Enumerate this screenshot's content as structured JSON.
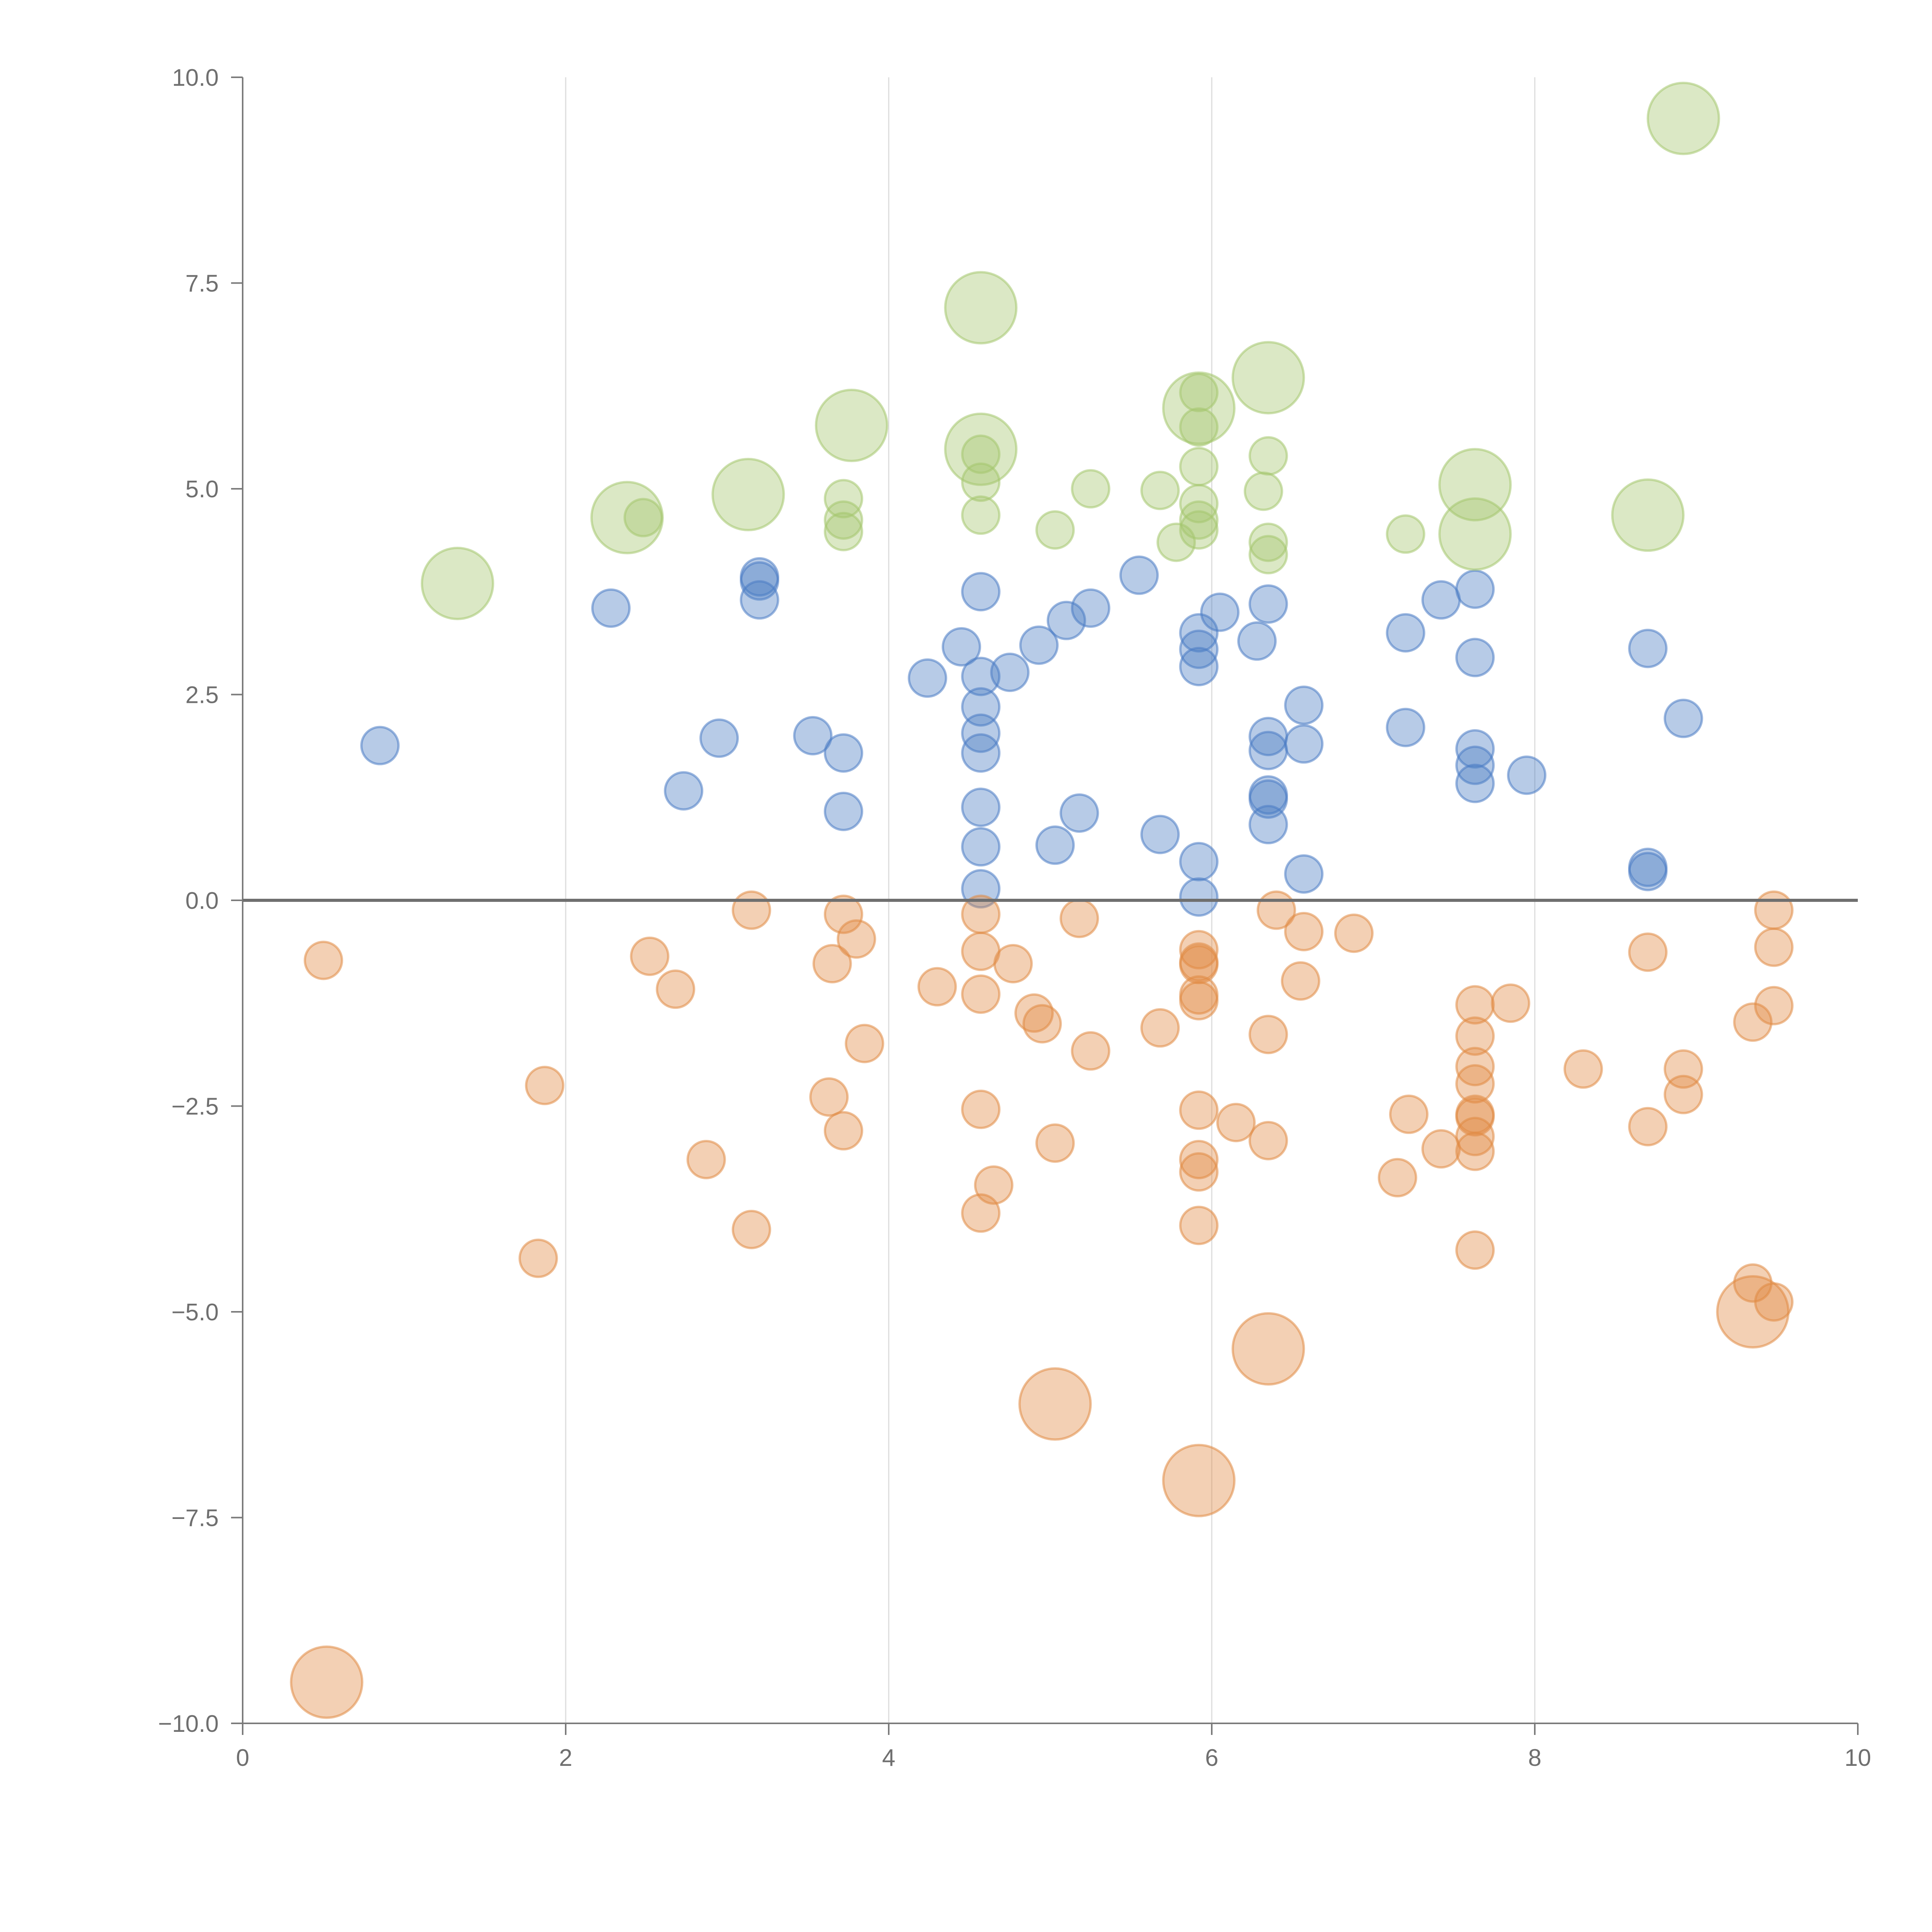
{
  "chart_data": {
    "type": "scatter",
    "title": "",
    "xlabel": "",
    "ylabel": "",
    "xlim": [
      0,
      10
    ],
    "ylim": [
      -10,
      10
    ],
    "x_ticks": [
      0,
      2,
      4,
      6,
      8,
      10
    ],
    "x_tick_labels": [
      "0",
      "2",
      "4",
      "6",
      "8",
      "10"
    ],
    "y_ticks": [
      10,
      7.5,
      5,
      2.5,
      0,
      -2.5,
      -5,
      -7.5,
      -10
    ],
    "y_tick_labels": [
      "10.0",
      "7.5",
      "5.0",
      "2.5",
      "0.0",
      "−2.5",
      "−5.0",
      "−7.5",
      "−10.0"
    ],
    "vertical_grid_at": [
      2,
      4,
      6,
      8
    ],
    "reference_line_y": 0,
    "legend": "none",
    "size_unit_note": "relative marker size: 1 = small, 2 = large",
    "series": [
      {
        "name": "blue",
        "color": "#4a7cc4",
        "points": [
          [
            0.85,
            1.88,
            1
          ],
          [
            2.28,
            3.55,
            1
          ],
          [
            2.73,
            1.33,
            1
          ],
          [
            2.95,
            1.97,
            1
          ],
          [
            3.2,
            3.93,
            1
          ],
          [
            3.2,
            3.88,
            1
          ],
          [
            3.2,
            3.65,
            1
          ],
          [
            3.53,
            2.0,
            1
          ],
          [
            3.72,
            1.79,
            1
          ],
          [
            3.72,
            1.08,
            1
          ],
          [
            4.24,
            2.7,
            1
          ],
          [
            4.45,
            3.08,
            1
          ],
          [
            4.57,
            3.75,
            1
          ],
          [
            4.57,
            2.72,
            1
          ],
          [
            4.57,
            2.35,
            1
          ],
          [
            4.57,
            2.03,
            1
          ],
          [
            4.57,
            1.79,
            1
          ],
          [
            4.57,
            1.13,
            1
          ],
          [
            4.57,
            0.65,
            1
          ],
          [
            4.57,
            0.14,
            1
          ],
          [
            4.75,
            2.77,
            1
          ],
          [
            4.93,
            3.1,
            1
          ],
          [
            5.03,
            0.67,
            1
          ],
          [
            5.1,
            3.4,
            1
          ],
          [
            5.18,
            1.06,
            1
          ],
          [
            5.25,
            3.55,
            1
          ],
          [
            5.55,
            3.95,
            1
          ],
          [
            5.68,
            0.8,
            1
          ],
          [
            5.92,
            3.25,
            1
          ],
          [
            5.92,
            3.05,
            1
          ],
          [
            5.92,
            2.84,
            1
          ],
          [
            5.92,
            0.47,
            1
          ],
          [
            5.92,
            0.04,
            1
          ],
          [
            6.05,
            3.5,
            1
          ],
          [
            6.28,
            3.15,
            1
          ],
          [
            6.35,
            3.6,
            1
          ],
          [
            6.35,
            1.99,
            1
          ],
          [
            6.35,
            1.82,
            1
          ],
          [
            6.35,
            1.28,
            1
          ],
          [
            6.35,
            1.23,
            1
          ],
          [
            6.35,
            0.92,
            1
          ],
          [
            6.57,
            2.37,
            1
          ],
          [
            6.57,
            1.9,
            1
          ],
          [
            6.57,
            0.32,
            1
          ],
          [
            7.2,
            3.25,
            1
          ],
          [
            7.2,
            2.1,
            1
          ],
          [
            7.42,
            3.65,
            1
          ],
          [
            7.63,
            3.78,
            1
          ],
          [
            7.63,
            2.95,
            1
          ],
          [
            7.63,
            1.84,
            1
          ],
          [
            7.63,
            1.64,
            1
          ],
          [
            7.63,
            1.42,
            1
          ],
          [
            7.95,
            1.52,
            1
          ],
          [
            8.7,
            3.06,
            1
          ],
          [
            8.7,
            0.4,
            1
          ],
          [
            8.7,
            0.35,
            1
          ],
          [
            8.92,
            2.21,
            1
          ]
        ]
      },
      {
        "name": "orange",
        "color": "#e08a44",
        "points": [
          [
            0.5,
            -0.73,
            1
          ],
          [
            0.52,
            -9.5,
            2
          ],
          [
            1.83,
            -4.35,
            1
          ],
          [
            1.87,
            -2.25,
            1
          ],
          [
            2.52,
            -0.68,
            1
          ],
          [
            2.68,
            -1.08,
            1
          ],
          [
            2.87,
            -3.15,
            1
          ],
          [
            3.15,
            -0.12,
            1
          ],
          [
            3.15,
            -4.0,
            1
          ],
          [
            3.63,
            -2.39,
            1
          ],
          [
            3.65,
            -0.77,
            1
          ],
          [
            3.72,
            -0.17,
            1
          ],
          [
            3.72,
            -2.8,
            1
          ],
          [
            3.8,
            -0.47,
            1
          ],
          [
            3.85,
            -1.74,
            1
          ],
          [
            4.3,
            -1.05,
            1
          ],
          [
            4.57,
            -0.17,
            1
          ],
          [
            4.57,
            -0.62,
            1
          ],
          [
            4.57,
            -1.14,
            1
          ],
          [
            4.57,
            -2.54,
            1
          ],
          [
            4.57,
            -3.8,
            1
          ],
          [
            4.65,
            -3.46,
            1
          ],
          [
            4.77,
            -0.77,
            1
          ],
          [
            4.9,
            -1.37,
            1
          ],
          [
            4.95,
            -1.5,
            1
          ],
          [
            5.03,
            -2.95,
            1
          ],
          [
            5.03,
            -6.12,
            2
          ],
          [
            5.18,
            -0.22,
            1
          ],
          [
            5.25,
            -1.83,
            1
          ],
          [
            5.68,
            -1.55,
            1
          ],
          [
            5.92,
            -0.6,
            1
          ],
          [
            5.92,
            -0.75,
            1
          ],
          [
            5.92,
            -0.78,
            1
          ],
          [
            5.92,
            -1.15,
            1
          ],
          [
            5.92,
            -1.22,
            1
          ],
          [
            5.92,
            -2.55,
            1
          ],
          [
            5.92,
            -3.15,
            1
          ],
          [
            5.92,
            -3.3,
            1
          ],
          [
            5.92,
            -3.95,
            1
          ],
          [
            5.92,
            -7.05,
            2
          ],
          [
            6.15,
            -2.7,
            1
          ],
          [
            6.35,
            -1.63,
            1
          ],
          [
            6.35,
            -2.92,
            1
          ],
          [
            6.35,
            -5.45,
            2
          ],
          [
            6.4,
            -0.12,
            1
          ],
          [
            6.55,
            -0.98,
            1
          ],
          [
            6.57,
            -0.38,
            1
          ],
          [
            6.88,
            -0.4,
            1
          ],
          [
            7.15,
            -3.37,
            1
          ],
          [
            7.22,
            -2.6,
            1
          ],
          [
            7.42,
            -3.02,
            1
          ],
          [
            7.63,
            -1.27,
            1
          ],
          [
            7.63,
            -1.65,
            1
          ],
          [
            7.63,
            -2.02,
            1
          ],
          [
            7.63,
            -2.23,
            1
          ],
          [
            7.63,
            -2.6,
            1
          ],
          [
            7.63,
            -2.63,
            1
          ],
          [
            7.63,
            -2.87,
            1
          ],
          [
            7.63,
            -3.05,
            1
          ],
          [
            7.63,
            -4.25,
            1
          ],
          [
            7.85,
            -1.25,
            1
          ],
          [
            8.3,
            -2.05,
            1
          ],
          [
            8.7,
            -0.63,
            1
          ],
          [
            8.7,
            -2.75,
            1
          ],
          [
            8.92,
            -2.05,
            1
          ],
          [
            8.92,
            -2.36,
            1
          ],
          [
            9.35,
            -1.48,
            1
          ],
          [
            9.35,
            -4.65,
            1
          ],
          [
            9.35,
            -5.0,
            2
          ],
          [
            9.48,
            -0.12,
            1
          ],
          [
            9.48,
            -0.57,
            1
          ],
          [
            9.48,
            -1.28,
            1
          ],
          [
            9.48,
            -4.88,
            1
          ]
        ]
      },
      {
        "name": "green",
        "color": "#a4c66e",
        "points": [
          [
            1.33,
            3.85,
            2
          ],
          [
            2.38,
            4.65,
            2
          ],
          [
            2.48,
            4.65,
            1
          ],
          [
            3.13,
            4.93,
            2
          ],
          [
            3.72,
            4.88,
            1
          ],
          [
            3.72,
            4.62,
            1
          ],
          [
            3.72,
            4.48,
            1
          ],
          [
            3.77,
            5.77,
            2
          ],
          [
            4.57,
            7.2,
            2
          ],
          [
            4.57,
            5.48,
            2
          ],
          [
            4.57,
            5.42,
            1
          ],
          [
            4.57,
            5.08,
            1
          ],
          [
            4.57,
            4.68,
            1
          ],
          [
            5.03,
            4.5,
            1
          ],
          [
            5.25,
            5.0,
            1
          ],
          [
            5.68,
            4.98,
            1
          ],
          [
            5.78,
            4.35,
            1
          ],
          [
            5.92,
            5.98,
            2
          ],
          [
            5.92,
            6.17,
            1
          ],
          [
            5.92,
            5.75,
            1
          ],
          [
            5.92,
            5.27,
            1
          ],
          [
            5.92,
            4.82,
            1
          ],
          [
            5.92,
            4.62,
            1
          ],
          [
            5.92,
            4.5,
            1
          ],
          [
            6.35,
            6.35,
            2
          ],
          [
            6.35,
            5.4,
            1
          ],
          [
            6.32,
            4.97,
            1
          ],
          [
            6.35,
            4.35,
            1
          ],
          [
            6.35,
            4.2,
            1
          ],
          [
            7.2,
            4.45,
            1
          ],
          [
            7.63,
            5.05,
            2
          ],
          [
            7.63,
            4.45,
            2
          ],
          [
            8.7,
            4.68,
            2
          ],
          [
            8.92,
            9.5,
            2
          ]
        ]
      }
    ]
  }
}
